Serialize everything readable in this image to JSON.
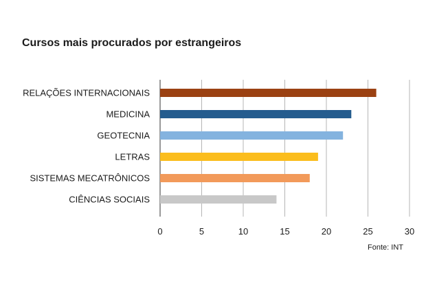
{
  "chart_data": {
    "type": "bar",
    "orientation": "horizontal",
    "title": "Cursos mais procurados por estrangeiros",
    "categories": [
      "RELAÇÕES INTERNACIONAIS",
      "MEDICINA",
      "GEOTECNIA",
      "LETRAS",
      "SISTEMAS MECATRÔNICOS",
      "CIÊNCIAS SOCIAIS"
    ],
    "values": [
      26,
      23,
      22,
      19,
      18,
      14
    ],
    "colors": [
      "#9b4112",
      "#245c8e",
      "#84b3df",
      "#fbbd1d",
      "#f29a5a",
      "#c8c8c8"
    ],
    "xlim": [
      0,
      30
    ],
    "xticks": [
      "0",
      "5",
      "10",
      "15",
      "20",
      "25",
      "30"
    ],
    "grid": true,
    "legend": false,
    "source": "Fonte: INT"
  }
}
